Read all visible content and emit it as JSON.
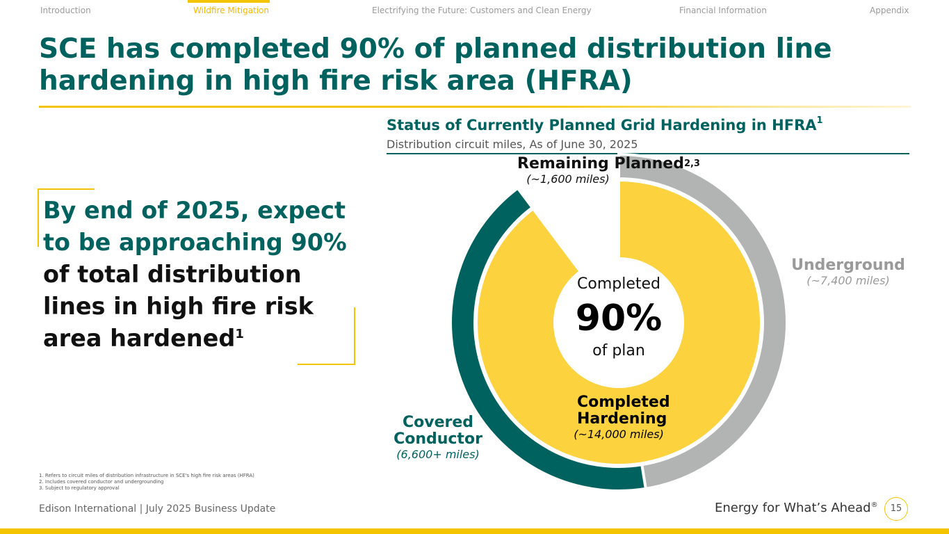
{
  "nav": {
    "items": [
      {
        "label": "Introduction",
        "active": false
      },
      {
        "label": "Wildfire Mitigation",
        "active": true
      },
      {
        "label": "Electrifying the Future: Customers and Clean Energy",
        "active": false
      },
      {
        "label": "Financial Information",
        "active": false
      },
      {
        "label": "Appendix",
        "active": false
      }
    ]
  },
  "page_title": "SCE has completed 90% of planned distribution line hardening in high fire risk area (HFRA)",
  "callout": {
    "highlight": "By end of 2025, expect to be approaching 90%",
    "rest": "of total distribution lines in high fire risk area hardened",
    "footnote_ref": "1"
  },
  "chart_data": {
    "type": "pie",
    "title": "Status of Currently Planned Grid Hardening in HFRA",
    "title_sup": "1",
    "subtitle": "Distribution circuit miles, As of June 30, 2025",
    "colors": {
      "completed": "#fcd23e",
      "remaining": "#ffffff",
      "underground": "#b2b3b3",
      "covered_conductor": "#00625f"
    },
    "inner_ring": {
      "slices": [
        {
          "name": "Completed Hardening",
          "value": 14000,
          "miles_label": "(~14,000 miles)"
        },
        {
          "name": "Remaining Planned",
          "name_sup": "2,3",
          "value": 1600,
          "miles_label": "(~1,600 miles)"
        }
      ]
    },
    "outer_ring": {
      "slices": [
        {
          "name": "Underground",
          "value": 7400,
          "miles_label": "(~7,400 miles)"
        },
        {
          "name": "Covered Conductor",
          "value": 6600,
          "miles_label": "(6,600+ miles)"
        }
      ]
    },
    "center": {
      "pre": "Completed",
      "value": "90%",
      "post": "of plan"
    }
  },
  "footnotes": [
    "1.   Refers to circuit miles of distribution infrastructure in SCE's high fire risk areas (HFRA)",
    "2.   Includes covered conductor and undergrounding",
    "3.   Subject to regulatory approval"
  ],
  "footer": {
    "left": "Edison International |  July 2025 Business Update",
    "tagline": "Energy for What’s Ahead",
    "tagline_mark": "®",
    "page_number": "15"
  }
}
